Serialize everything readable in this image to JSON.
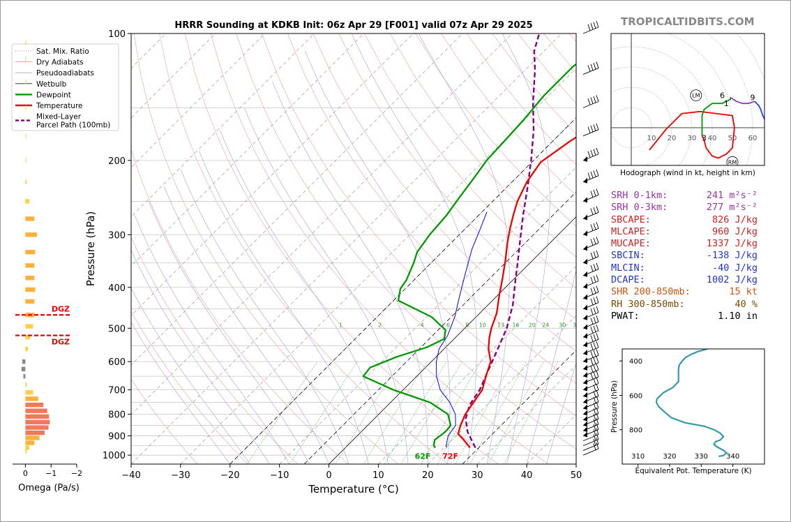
{
  "brand": "TROPICALTIDBITS.COM",
  "title": "HRRR Sounding at KDKB Init: 06z Apr 29 [F001] valid 07z Apr 29 2025",
  "chart_data": [
    {
      "type": "line",
      "name": "skew-t",
      "xlabel": "Temperature (°C)",
      "ylabel": "Pressure (hPa)",
      "xlim": [
        -40,
        50
      ],
      "ylim": [
        1050,
        100
      ],
      "y_scale": "log",
      "skew": "45 degrees",
      "x_ticks": [
        "−40",
        "−30",
        "−20",
        "−10",
        "0",
        "10",
        "20",
        "30",
        "40",
        "50"
      ],
      "y_ticks": [
        {
          "p": 100,
          "label": "100"
        },
        {
          "p": 200,
          "label": "200"
        },
        {
          "p": 300,
          "label": "300"
        },
        {
          "p": 400,
          "label": "400"
        },
        {
          "p": 500,
          "label": "500"
        },
        {
          "p": 600,
          "label": "600"
        },
        {
          "p": 700,
          "label": "700"
        },
        {
          "p": 800,
          "label": "800"
        },
        {
          "p": 900,
          "label": "900"
        },
        {
          "p": 1000,
          "label": "1000"
        }
      ],
      "legend": {
        "placement": "top-left",
        "entries": [
          {
            "label": "Sat. Mix. Ratio",
            "color": "#777777",
            "style": "dotted"
          },
          {
            "label": "Dry Adiabats",
            "color": "#e08080",
            "style": "solid-thin"
          },
          {
            "label": "Pseudoadiabats",
            "color": "#aaaaaa",
            "style": "solid-thin"
          },
          {
            "label": "Wetbulb",
            "color": "#0000ee",
            "style": "solid-thin"
          },
          {
            "label": "Dewpoint",
            "color": "#009900",
            "style": "solid-thick"
          },
          {
            "label": "Temperature",
            "color": "#ee0000",
            "style": "solid-thick"
          },
          {
            "label": "Mixed-Layer\nParcel Path (100mb)",
            "color": "#800080",
            "style": "dashed"
          }
        ]
      },
      "mixing_ratio_labels": [
        "1",
        "2",
        "4",
        "6",
        "8",
        "10",
        "13",
        "16",
        "20",
        "24",
        "30",
        "36"
      ],
      "surface_labels": {
        "dewpoint": "62F",
        "temperature": "72F"
      },
      "series": [
        {
          "name": "Temperature",
          "color": "#ee0000",
          "points": [
            [
              25.2,
              960
            ],
            [
              24.5,
              950
            ],
            [
              22,
              915
            ],
            [
              20,
              890
            ],
            [
              18.8,
              850
            ],
            [
              17.5,
              800
            ],
            [
              16.8,
              750
            ],
            [
              16,
              700
            ],
            [
              14,
              650
            ],
            [
              12,
              600
            ],
            [
              9,
              560
            ],
            [
              6.8,
              525
            ],
            [
              5.4,
              500
            ],
            [
              3.4,
              460
            ],
            [
              0.5,
              420
            ],
            [
              -2.5,
              380
            ],
            [
              -5.5,
              345
            ],
            [
              -8.5,
              315
            ],
            [
              -11,
              290
            ],
            [
              -13,
              270
            ],
            [
              -15,
              250
            ],
            [
              -17,
              225
            ],
            [
              -18.2,
              202
            ],
            [
              -16.5,
              180
            ],
            [
              -14,
              160
            ],
            [
              -11.5,
              143
            ],
            [
              -7.5,
              125
            ],
            [
              -5,
              112
            ],
            [
              -3,
              104
            ],
            [
              -2.2,
              100
            ]
          ]
        },
        {
          "name": "Dewpoint",
          "color": "#009900",
          "points": [
            [
              18.2,
              960
            ],
            [
              17.5,
              950
            ],
            [
              16.5,
              920
            ],
            [
              17,
              880
            ],
            [
              16.8,
              850
            ],
            [
              14,
              800
            ],
            [
              8,
              750
            ],
            [
              -2,
              700
            ],
            [
              -10.8,
              650
            ],
            [
              -11.2,
              620
            ],
            [
              -8,
              585
            ],
            [
              -3.8,
              555
            ],
            [
              -2,
              530
            ],
            [
              -3.5,
              505
            ],
            [
              -9,
              470
            ],
            [
              -19,
              430
            ],
            [
              -21,
              403
            ],
            [
              -21.5,
              385
            ],
            [
              -23.5,
              350
            ],
            [
              -25,
              330
            ],
            [
              -26,
              300
            ],
            [
              -26.5,
              270
            ],
            [
              -27.5,
              245
            ],
            [
              -28.5,
              220
            ],
            [
              -29.5,
              200
            ],
            [
              -29.8,
              180
            ],
            [
              -30.2,
              160
            ],
            [
              -31,
              140
            ],
            [
              -31,
              120
            ],
            [
              -30,
              110
            ],
            [
              -28,
              100
            ]
          ]
        },
        {
          "name": "Wetbulb",
          "color": "#0000ee",
          "points": [
            [
              20.5,
              960
            ],
            [
              20,
              950
            ],
            [
              18.4,
              900
            ],
            [
              17.8,
              850
            ],
            [
              15.5,
              800
            ],
            [
              12,
              750
            ],
            [
              7.5,
              700
            ],
            [
              4,
              650
            ],
            [
              1,
              600
            ],
            [
              -1,
              560
            ],
            [
              -2,
              520
            ],
            [
              -4.3,
              470
            ],
            [
              -7.5,
              420
            ],
            [
              -11,
              370
            ],
            [
              -14.5,
              325
            ],
            [
              -17,
              290
            ],
            [
              -19,
              265
            ]
          ]
        },
        {
          "name": "Mixed-Layer Parcel Path (100mb)",
          "color": "#800080",
          "points": [
            [
              26.3,
              960
            ],
            [
              21.5,
              880
            ],
            [
              18.5,
              820
            ],
            [
              16.5,
              760
            ],
            [
              15.5,
              700
            ],
            [
              13.3,
              630
            ],
            [
              10.5,
              550
            ],
            [
              8.5,
              500
            ],
            [
              5,
              440
            ],
            [
              1,
              390
            ],
            [
              -2.5,
              350
            ],
            [
              -6.5,
              310
            ],
            [
              -11,
              270
            ],
            [
              -16,
              230
            ],
            [
              -20.5,
              200
            ],
            [
              -26,
              170
            ],
            [
              -32,
              145
            ],
            [
              -38,
              122
            ],
            [
              -42,
              110
            ],
            [
              -44.5,
              100
            ]
          ]
        }
      ],
      "dgz_labels": [
        "DGZ",
        "DGZ"
      ]
    },
    {
      "type": "bar",
      "name": "omega",
      "xlabel": "Omega (Pa/s)",
      "xlim": [
        0.5,
        -2
      ],
      "x_ticks": [
        "0",
        "−1",
        "−2"
      ],
      "orientation": "horizontal",
      "values": [
        {
          "p": 980,
          "omega": -0.05
        },
        {
          "p": 960,
          "omega": -0.15
        },
        {
          "p": 935,
          "omega": -0.35
        },
        {
          "p": 910,
          "omega": -0.55
        },
        {
          "p": 885,
          "omega": -0.75
        },
        {
          "p": 860,
          "omega": -0.9
        },
        {
          "p": 835,
          "omega": -0.95
        },
        {
          "p": 810,
          "omega": -0.92
        },
        {
          "p": 785,
          "omega": -0.85
        },
        {
          "p": 760,
          "omega": -0.7
        },
        {
          "p": 735,
          "omega": -0.5
        },
        {
          "p": 710,
          "omega": -0.3
        },
        {
          "p": 680,
          "omega": -0.05
        },
        {
          "p": 650,
          "omega": 0.08
        },
        {
          "p": 625,
          "omega": 0.15
        },
        {
          "p": 600,
          "omega": 0.12
        },
        {
          "p": 560,
          "omega": -0.1
        },
        {
          "p": 525,
          "omega": -0.18
        },
        {
          "p": 495,
          "omega": -0.3
        },
        {
          "p": 465,
          "omega": -0.35
        },
        {
          "p": 432,
          "omega": -0.35
        },
        {
          "p": 405,
          "omega": -0.38
        },
        {
          "p": 380,
          "omega": -0.35
        },
        {
          "p": 355,
          "omega": -0.35
        },
        {
          "p": 330,
          "omega": -0.38
        },
        {
          "p": 300,
          "omega": -0.45
        },
        {
          "p": 275,
          "omega": -0.35
        },
        {
          "p": 250,
          "omega": -0.15
        },
        {
          "p": 225,
          "omega": -0.05
        },
        {
          "p": 200,
          "omega": -0.02
        },
        {
          "p": 175,
          "omega": -0.02
        },
        {
          "p": 150,
          "omega": -0.02
        },
        {
          "p": 130,
          "omega": -0.02
        },
        {
          "p": 115,
          "omega": -0.02
        },
        {
          "p": 105,
          "omega": -0.02
        }
      ],
      "dgz_bounds_hpa": [
        465,
        520
      ]
    },
    {
      "type": "line",
      "name": "hodograph",
      "xlabel": "Hodograph (wind in kt, height in km)",
      "ring_labels": [
        "10",
        "20",
        "30",
        "40",
        "50",
        "60"
      ],
      "series": [
        {
          "name": "0-3 km",
          "color": "#ee0000",
          "points": [
            [
              9,
              -11
            ],
            [
              17,
              -1
            ],
            [
              25,
              7
            ],
            [
              34,
              8
            ],
            [
              50,
              6
            ],
            [
              51,
              0
            ],
            [
              50,
              -10
            ],
            [
              47,
              -13
            ],
            [
              43,
              -15
            ],
            [
              40,
              -14
            ],
            [
              37,
              -10
            ],
            [
              36,
              -6
            ],
            [
              35,
              -4
            ]
          ]
        },
        {
          "name": "3-6 km",
          "color": "#009900",
          "points": [
            [
              35,
              -4
            ],
            [
              35,
              1
            ],
            [
              35,
              6
            ],
            [
              36,
              9
            ],
            [
              40,
              12
            ],
            [
              45,
              12
            ],
            [
              49,
              14
            ],
            [
              49,
              15
            ]
          ]
        },
        {
          "name": "6-9 km",
          "color": "#9932cc",
          "points": [
            [
              49,
              15
            ],
            [
              52,
              13
            ],
            [
              55,
              12
            ],
            [
              58,
              12
            ],
            [
              61,
              13
            ]
          ]
        },
        {
          "name": "9-12 km",
          "color": "#1e3cff",
          "points": [
            [
              61,
              13
            ],
            [
              63,
              11
            ],
            [
              64,
              9
            ],
            [
              65,
              6
            ],
            [
              66,
              4
            ]
          ]
        }
      ],
      "height_labels": [
        {
          "t": "1",
          "u": 47,
          "v": 12
        },
        {
          "t": "3",
          "u": 36,
          "v": -5
        },
        {
          "t": "6",
          "u": 45,
          "v": 16
        },
        {
          "t": "9",
          "u": 60,
          "v": 15
        }
      ],
      "markers": [
        {
          "t": "LM",
          "u": 32,
          "v": 16
        },
        {
          "t": "RM",
          "u": 50,
          "v": -17
        }
      ]
    },
    {
      "type": "line",
      "name": "theta-e",
      "xlabel": "Equivalent Pot. Temperature (K)",
      "ylabel": "Pressure (hPa)",
      "xlim": [
        305,
        350
      ],
      "ylim": [
        1000,
        330
      ],
      "x_ticks": [
        "310",
        "320",
        "330",
        "340"
      ],
      "y_ticks": [
        "400",
        "600",
        "800"
      ],
      "color": "#3399aa",
      "points": [
        [
          332,
          330
        ],
        [
          329,
          345
        ],
        [
          327,
          360
        ],
        [
          325,
          380
        ],
        [
          324,
          400
        ],
        [
          323,
          425
        ],
        [
          322.8,
          450
        ],
        [
          322.8,
          480
        ],
        [
          322.8,
          520
        ],
        [
          321,
          555
        ],
        [
          318,
          585
        ],
        [
          316,
          620
        ],
        [
          315.8,
          640
        ],
        [
          316.5,
          665
        ],
        [
          318,
          690
        ],
        [
          320.5,
          730
        ],
        [
          325,
          760
        ],
        [
          331,
          780
        ],
        [
          334,
          800
        ],
        [
          336,
          820
        ],
        [
          337,
          840
        ],
        [
          336,
          860
        ],
        [
          334.5,
          870
        ],
        [
          334,
          885
        ],
        [
          335,
          900
        ],
        [
          337,
          920
        ],
        [
          338,
          935
        ],
        [
          337,
          950
        ],
        [
          335.5,
          955
        ]
      ]
    }
  ],
  "stats": [
    {
      "label": "SRH 0-1km:",
      "value": "241 m²s⁻²",
      "color": "#9932a6"
    },
    {
      "label": "SRH 0-3km:",
      "value": "277 m²s⁻²",
      "color": "#9932a6"
    },
    {
      "label": "SBCAPE:",
      "value": "826 J/kg",
      "color": "#cc2222"
    },
    {
      "label": "MLCAPE:",
      "value": "960 J/kg",
      "color": "#cc2222"
    },
    {
      "label": "MUCAPE:",
      "value": "1337 J/kg",
      "color": "#cc2222"
    },
    {
      "label": "SBCIN:",
      "value": "-138 J/kg",
      "color": "#2233cc"
    },
    {
      "label": "MLCIN:",
      "value": "-40 J/kg",
      "color": "#2233cc"
    },
    {
      "label": "DCAPE:",
      "value": "1002 J/kg",
      "color": "#2233cc"
    },
    {
      "label": "SHR 200-850mb:",
      "value": "15 kt",
      "color": "#cc5511"
    },
    {
      "label": "RH 300-850mb:",
      "value": "40 %",
      "color": "#7a4a00"
    },
    {
      "label": "PWAT:",
      "value": "1.10 in",
      "color": "#000000"
    }
  ]
}
